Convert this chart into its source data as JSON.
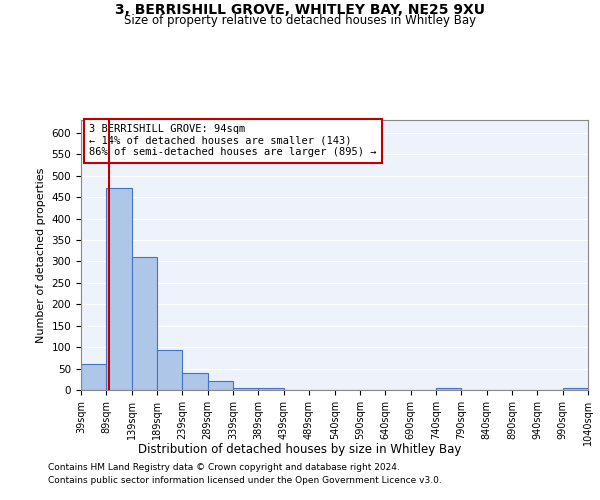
{
  "title": "3, BERRISHILL GROVE, WHITLEY BAY, NE25 9XU",
  "subtitle": "Size of property relative to detached houses in Whitley Bay",
  "xlabel": "Distribution of detached houses by size in Whitley Bay",
  "ylabel": "Number of detached properties",
  "footnote1": "Contains HM Land Registry data © Crown copyright and database right 2024.",
  "footnote2": "Contains public sector information licensed under the Open Government Licence v3.0.",
  "annotation_title": "3 BERRISHILL GROVE: 94sqm",
  "annotation_line2": "← 14% of detached houses are smaller (143)",
  "annotation_line3": "86% of semi-detached houses are larger (895) →",
  "bar_left_edges": [
    39,
    89,
    139,
    189,
    239,
    289,
    339,
    389,
    439,
    489,
    540,
    590,
    640,
    690,
    740,
    790,
    840,
    890,
    940,
    990
  ],
  "bar_widths": [
    50,
    50,
    50,
    50,
    50,
    50,
    50,
    50,
    50,
    51,
    50,
    50,
    50,
    50,
    50,
    50,
    50,
    50,
    50,
    50
  ],
  "bar_heights": [
    60,
    472,
    310,
    94,
    40,
    20,
    5,
    5,
    0,
    0,
    0,
    0,
    0,
    0,
    5,
    0,
    0,
    0,
    0,
    5
  ],
  "bar_color": "#aec6e8",
  "bar_edge_color": "#4472c4",
  "property_line_x": 94,
  "property_line_color": "#c00000",
  "ylim": [
    0,
    630
  ],
  "yticks": [
    0,
    50,
    100,
    150,
    200,
    250,
    300,
    350,
    400,
    450,
    500,
    550,
    600
  ],
  "xlim_left": 39,
  "xlim_right": 1040,
  "bg_color": "#eef3fb",
  "annotation_box_facecolor": "#ffffff",
  "annotation_box_edgecolor": "#c00000",
  "fig_width": 6.0,
  "fig_height": 5.0,
  "dpi": 100
}
